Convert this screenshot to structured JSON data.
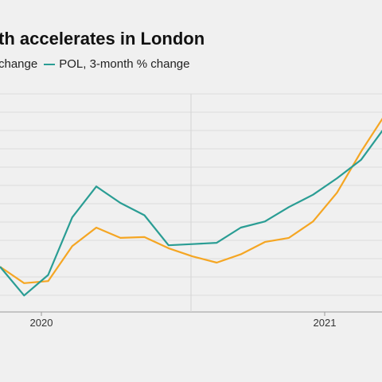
{
  "chart_data": {
    "type": "line",
    "title": "th accelerates in London",
    "x_tick_labels": [
      "2020",
      "2021"
    ],
    "grid": true,
    "legend_position": "top-left",
    "series": [
      {
        "name": "change",
        "legend_label": "change",
        "color": "#f5a623",
        "values": [
          0.6,
          0.2,
          0.25,
          1.1,
          1.55,
          1.3,
          1.32,
          1.05,
          0.85,
          0.7,
          0.9,
          1.2,
          1.3,
          1.7,
          2.4,
          3.4,
          4.3
        ]
      },
      {
        "name": "POL, 3-month % change",
        "legend_label": "POL, 3-month % change",
        "color": "#2a9d94",
        "values": [
          0.6,
          -0.1,
          0.4,
          1.8,
          2.55,
          2.15,
          1.85,
          1.12,
          1.15,
          1.18,
          1.55,
          1.7,
          2.05,
          2.35,
          2.75,
          3.2,
          4.0
        ]
      }
    ],
    "ylim": [
      -0.5,
      4.8
    ]
  }
}
